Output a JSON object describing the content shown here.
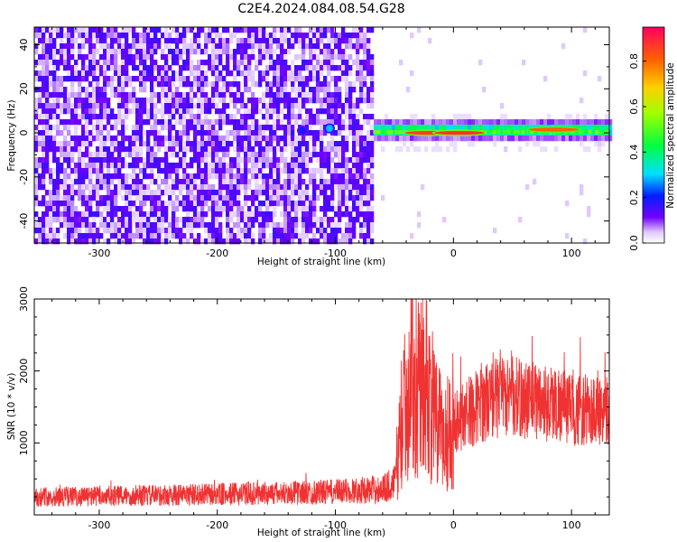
{
  "figure": {
    "title": "C2E4.2024.084.08.54.G28"
  },
  "chart_data": [
    {
      "type": "heatmap",
      "xlabel": "Height of straight line (km)",
      "ylabel": "Frequency (Hz)",
      "xlim": [
        -355,
        132
      ],
      "ylim": [
        -50,
        48
      ],
      "xticks": [
        -300,
        -200,
        -100,
        0,
        100
      ],
      "yticks": [
        -40,
        -20,
        0,
        20,
        40
      ],
      "colorbar": {
        "label": "Normalized spectral amplitude",
        "range": [
          0,
          0.95
        ],
        "ticks": [
          0.0,
          0.2,
          0.4,
          0.6,
          0.8
        ]
      },
      "regions": [
        {
          "x_range": [
            -355,
            -68
          ],
          "y_range": [
            -50,
            48
          ],
          "amplitude": "noise, mostly 0.05-0.2"
        },
        {
          "x_range": [
            -68,
            132
          ],
          "y_range": [
            -2,
            3
          ],
          "amplitude": "signal band near 0 Hz, 0.4-0.95"
        }
      ],
      "hot_spots": [
        {
          "x": -105,
          "y": 2,
          "value": 0.3
        },
        {
          "x": -128,
          "y": 1,
          "value": 0.2
        },
        {
          "x": -20,
          "y": 0,
          "value": 0.9
        },
        {
          "x": 5,
          "y": 0,
          "value": 0.92
        },
        {
          "x": 85,
          "y": 1.5,
          "value": 0.85
        }
      ],
      "grid": false
    },
    {
      "type": "line",
      "xlabel": "Height of straight line (km)",
      "ylabel": "SNR (10 * v/v)",
      "xlim": [
        -355,
        132
      ],
      "ylim": [
        0,
        3000
      ],
      "xticks": [
        -300,
        -200,
        -100,
        0,
        100
      ],
      "yticks": [
        1000,
        2000,
        3000
      ],
      "color": "#f03232",
      "series": [
        {
          "x": [
            -355,
            -300,
            -250,
            -200,
            -150,
            -100,
            -80,
            -60,
            -50,
            -45,
            -42,
            -38,
            -35,
            -30,
            -25,
            -20,
            -15,
            -10,
            -5,
            0,
            10,
            20,
            30,
            40,
            50,
            60,
            70,
            80,
            90,
            100,
            110,
            120,
            132
          ],
          "y": [
            250,
            260,
            270,
            285,
            300,
            320,
            340,
            360,
            450,
            1100,
            1400,
            1800,
            2100,
            2000,
            1900,
            1600,
            1300,
            1100,
            1150,
            1300,
            1400,
            1500,
            1600,
            1650,
            1650,
            1600,
            1600,
            1550,
            1550,
            1450,
            1450,
            1450,
            1500
          ]
        }
      ],
      "grid": false
    }
  ]
}
